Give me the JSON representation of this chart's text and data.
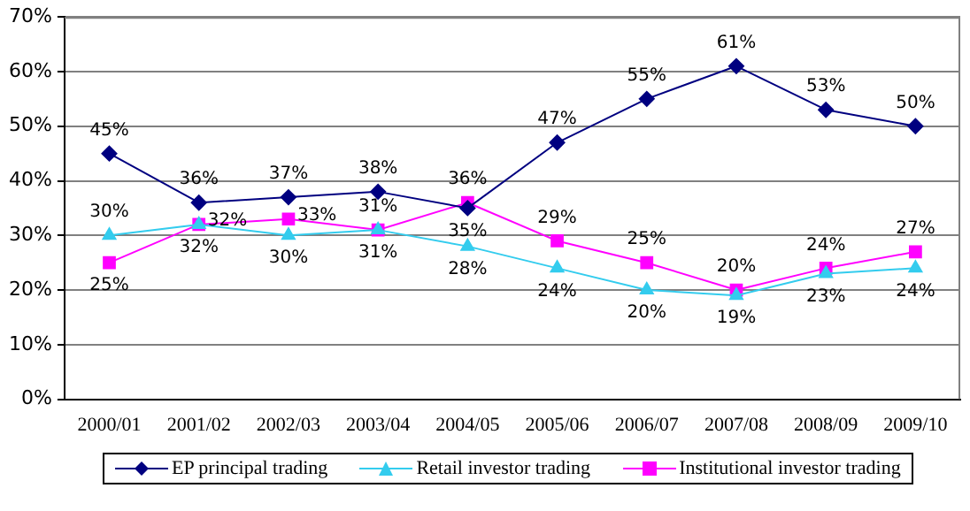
{
  "chart_data": {
    "type": "line",
    "categories": [
      "2000/01",
      "2001/02",
      "2002/03",
      "2003/04",
      "2004/05",
      "2005/06",
      "2006/07",
      "2007/08",
      "2008/09",
      "2009/10"
    ],
    "series": [
      {
        "name": "EP principal trading",
        "color": "#000080",
        "marker": "diamond",
        "values": [
          45,
          36,
          37,
          38,
          35,
          47,
          55,
          61,
          53,
          50
        ],
        "value_labels": [
          "45%",
          "36%",
          "37%",
          "38%",
          "35%",
          "47%",
          "55%",
          "61%",
          "53%",
          "50%"
        ]
      },
      {
        "name": "Retail investor trading",
        "color": "#33ccee",
        "marker": "triangle",
        "values": [
          30,
          32,
          30,
          31,
          28,
          24,
          20,
          19,
          23,
          24
        ],
        "value_labels": [
          "30%",
          "32%",
          "30%",
          "31%",
          "28%",
          "24%",
          "20%",
          "19%",
          "23%",
          "24%"
        ]
      },
      {
        "name": "Institutional investor trading",
        "color": "#ff00ff",
        "marker": "square",
        "values": [
          25,
          32,
          33,
          31,
          36,
          29,
          25,
          20,
          24,
          27
        ],
        "value_labels": [
          "25%",
          "32%",
          "33%",
          "31%",
          "36%",
          "29%",
          "25%",
          "20%",
          "24%",
          "27%"
        ]
      }
    ],
    "ylim": [
      0,
      70
    ],
    "yticks": [
      {
        "value": 0,
        "label": "0%"
      },
      {
        "value": 10,
        "label": "10%"
      },
      {
        "value": 20,
        "label": "20%"
      },
      {
        "value": 30,
        "label": "30%"
      },
      {
        "value": 40,
        "label": "40%"
      },
      {
        "value": 50,
        "label": "50%"
      },
      {
        "value": 60,
        "label": "60%"
      },
      {
        "value": 70,
        "label": "70%"
      }
    ],
    "grid": "y",
    "legend": "bottom",
    "line_style": "solid"
  }
}
